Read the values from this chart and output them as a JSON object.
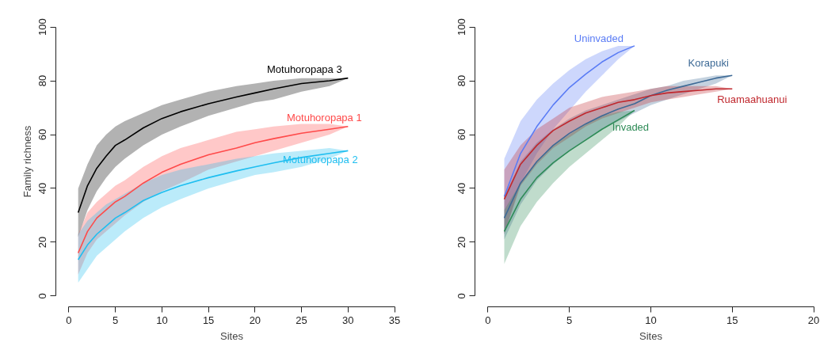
{
  "chart_data": [
    {
      "type": "line",
      "xlabel": "Sites",
      "ylabel": "Family richness",
      "xlim": [
        0,
        35
      ],
      "ylim": [
        0,
        100
      ],
      "xticks": [
        0,
        5,
        10,
        15,
        20,
        25,
        30,
        35
      ],
      "yticks": [
        0,
        20,
        40,
        60,
        80,
        100
      ],
      "grid": false,
      "line_style": "solid",
      "series": [
        {
          "name": "Motuhoropapa 3",
          "color": "#000000",
          "x": [
            1,
            2,
            3,
            4,
            5,
            6,
            8,
            10,
            12,
            15,
            18,
            20,
            22,
            25,
            28,
            30
          ],
          "values": [
            31,
            41,
            47.5,
            52,
            56,
            58,
            62.5,
            66,
            68.5,
            71.5,
            74,
            75.5,
            77,
            79,
            80,
            81
          ],
          "lower": [
            22,
            32,
            39,
            44,
            48,
            51,
            56,
            60,
            63,
            67,
            70,
            72,
            73,
            76,
            78,
            81
          ],
          "upper": [
            40,
            49,
            56,
            60,
            63,
            65,
            68,
            71,
            73,
            76,
            78,
            79,
            80,
            81,
            81,
            81
          ]
        },
        {
          "name": "Motuhoropapa 1",
          "color": "#ff4a4a",
          "x": [
            1,
            2,
            3,
            4,
            5,
            6,
            8,
            10,
            12,
            15,
            18,
            20,
            22,
            25,
            28,
            30
          ],
          "values": [
            16,
            24,
            29,
            32,
            35,
            37,
            42,
            46,
            49,
            52.5,
            55,
            57,
            58.5,
            60.5,
            62,
            63
          ],
          "lower": [
            8,
            16,
            21,
            24,
            27,
            30,
            35,
            39,
            42,
            47,
            50,
            52,
            54,
            57,
            60,
            63
          ],
          "upper": [
            23,
            31,
            35,
            38,
            41,
            43,
            48,
            52,
            55,
            58,
            61,
            62,
            63,
            64,
            64,
            63
          ]
        },
        {
          "name": "Motuhoropapa 2",
          "color": "#1ebef0",
          "x": [
            1,
            2,
            3,
            4,
            5,
            6,
            8,
            10,
            12,
            15,
            18,
            20,
            22,
            25,
            28,
            30
          ],
          "values": [
            13.5,
            19,
            23,
            26,
            29,
            31,
            35.5,
            38.5,
            41,
            44,
            46.5,
            48,
            49.5,
            51.5,
            53,
            54
          ],
          "lower": [
            5,
            10,
            15,
            18,
            21,
            24,
            29,
            33,
            36,
            40,
            43,
            45,
            46,
            48,
            51,
            54
          ],
          "upper": [
            23,
            28,
            31,
            34,
            36,
            38,
            42,
            45,
            47,
            49,
            51,
            52,
            53,
            54,
            55,
            54
          ]
        }
      ]
    },
    {
      "type": "line",
      "xlabel": "Sites",
      "xlim": [
        0,
        20
      ],
      "ylim": [
        0,
        100
      ],
      "xticks": [
        0,
        5,
        10,
        15,
        20
      ],
      "yticks": [
        0,
        20,
        40,
        60,
        80,
        100
      ],
      "grid": false,
      "line_style": "solid",
      "series": [
        {
          "name": "Uninvaded",
          "color": "#5a7cf5",
          "x": [
            1,
            2,
            3,
            4,
            5,
            6,
            7,
            8,
            9
          ],
          "values": [
            37,
            53,
            63,
            71,
            77.5,
            82.5,
            87,
            90.5,
            93
          ],
          "lower": [
            23,
            42,
            53,
            62,
            69,
            76,
            82,
            88,
            93
          ],
          "upper": [
            51,
            65,
            73,
            79,
            84,
            88,
            91,
            93,
            93
          ]
        },
        {
          "name": "Korapuki",
          "color": "#3d6a96",
          "x": [
            1,
            2,
            3,
            4,
            5,
            6,
            7,
            8,
            9,
            10,
            11,
            12,
            13,
            14,
            15
          ],
          "values": [
            29,
            42,
            50,
            56,
            60.5,
            64,
            67,
            69.5,
            71.5,
            74.5,
            76.5,
            78,
            79.5,
            81,
            82
          ],
          "lower": [
            21,
            34,
            43,
            49,
            54,
            58,
            62,
            65,
            68,
            71,
            73,
            75,
            77,
            79,
            82
          ],
          "upper": [
            37,
            50,
            57,
            62,
            66,
            69,
            71,
            73,
            75,
            77,
            78,
            80,
            81,
            82,
            82
          ]
        },
        {
          "name": "Ruamaahuanui",
          "color": "#c0282e",
          "x": [
            1,
            2,
            3,
            4,
            5,
            6,
            7,
            8,
            9,
            10,
            11,
            12,
            13,
            14,
            15
          ],
          "values": [
            36,
            49,
            56,
            61.5,
            65,
            68,
            70,
            72,
            73,
            74.5,
            75.5,
            76,
            76.5,
            77,
            77
          ],
          "lower": [
            23,
            41,
            49,
            55,
            59,
            63,
            66,
            68,
            70,
            72,
            73,
            74,
            75,
            76,
            77
          ],
          "upper": [
            47,
            56,
            62,
            66,
            70,
            72,
            74,
            75,
            76,
            77,
            78,
            78,
            78,
            78,
            77
          ]
        },
        {
          "name": "Invaded",
          "color": "#2e8b57",
          "x": [
            1,
            2,
            3,
            4,
            5,
            6,
            7,
            8,
            9
          ],
          "values": [
            24,
            36,
            44,
            49.5,
            54,
            58,
            62,
            65.5,
            69
          ],
          "lower": [
            12,
            26,
            35,
            42,
            48,
            53,
            58,
            63,
            69
          ],
          "upper": [
            32,
            42,
            50,
            56,
            60,
            64,
            67,
            68.5,
            69
          ]
        }
      ]
    }
  ]
}
